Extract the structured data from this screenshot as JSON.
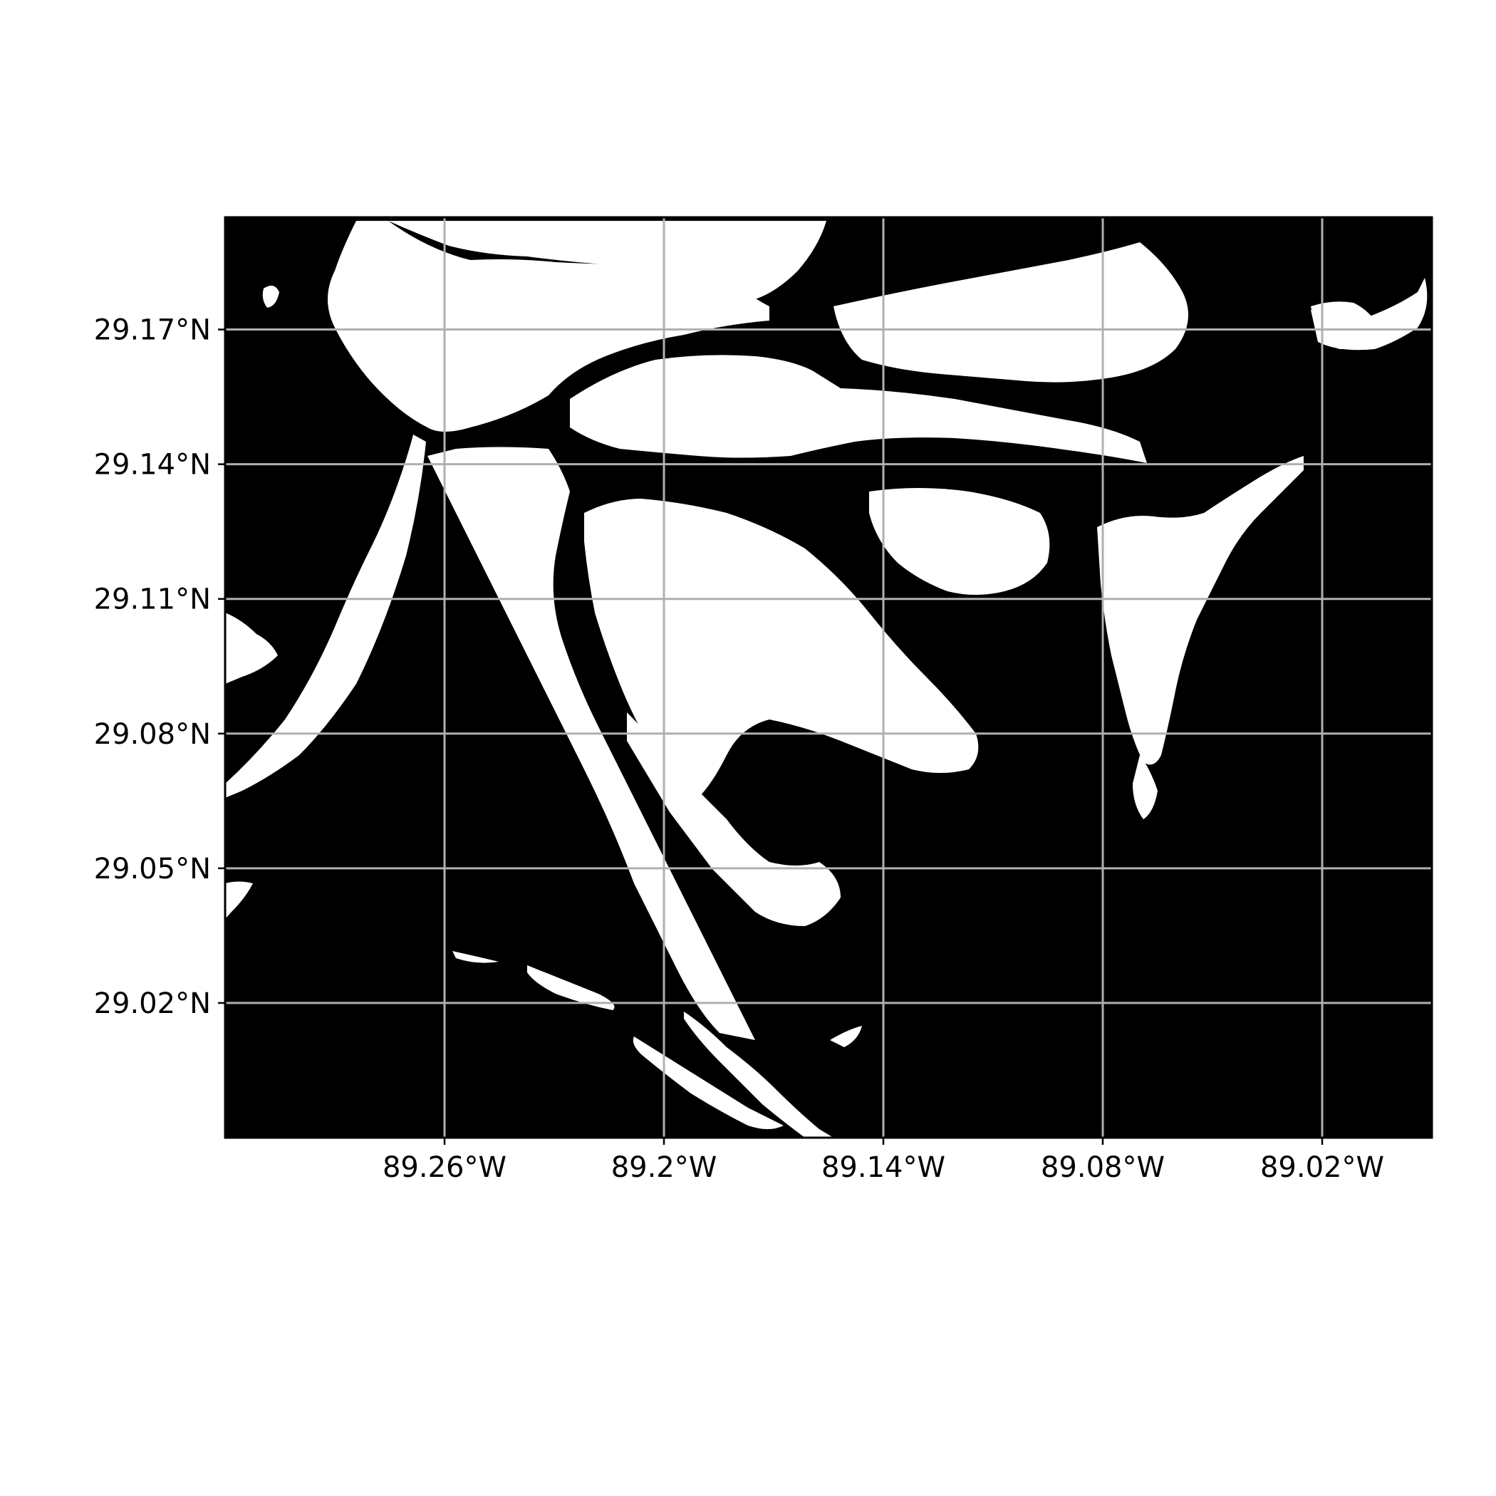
{
  "map": {
    "colors": {
      "water": "#000000",
      "land": "#ffffff",
      "grid": "#b0b0b0",
      "frame": "#000000"
    },
    "grid_visible": true,
    "lon_range": [
      -89.32,
      -88.99
    ],
    "lat_range": [
      28.99,
      29.195
    ],
    "x_ticks": [
      {
        "value": -89.26,
        "label": "89.26°W"
      },
      {
        "value": -89.2,
        "label": "89.2°W"
      },
      {
        "value": -89.14,
        "label": "89.14°W"
      },
      {
        "value": -89.08,
        "label": "89.08°W"
      },
      {
        "value": -89.02,
        "label": "89.02°W"
      }
    ],
    "y_ticks": [
      {
        "value": 29.17,
        "label": "29.17°N"
      },
      {
        "value": 29.14,
        "label": "29.14°N"
      },
      {
        "value": 29.11,
        "label": "29.11°N"
      },
      {
        "value": 29.08,
        "label": "29.08°N"
      },
      {
        "value": 29.05,
        "label": "29.05°N"
      },
      {
        "value": 29.02,
        "label": "29.02°N"
      }
    ]
  }
}
